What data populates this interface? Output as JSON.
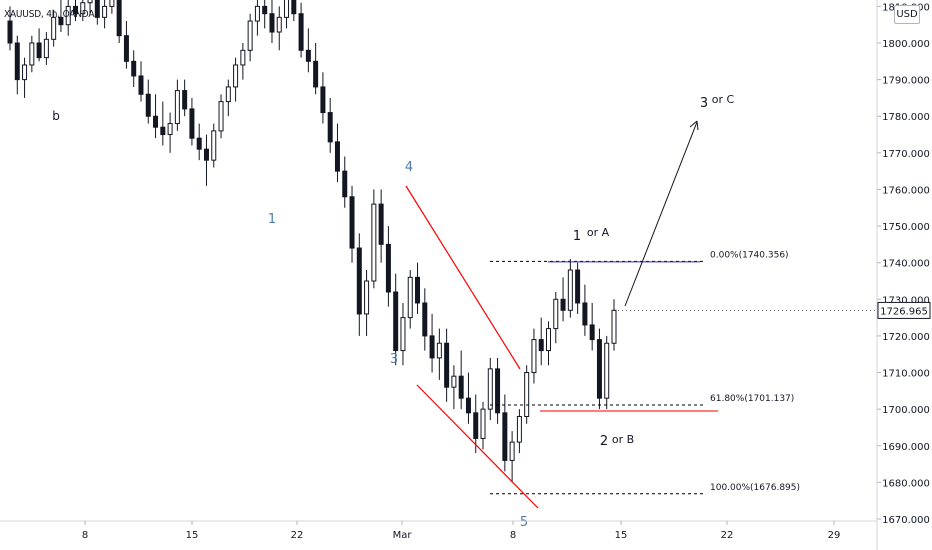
{
  "symbol_label": "XAUUSD, 4h, OANDA",
  "currency": "USD",
  "colors": {
    "up": "#131722",
    "down": "#131722",
    "channel": "#ff0000",
    "fib_line": "#000000",
    "support": "#ff5252",
    "last_price_bg": "#ffffff",
    "wave_blue": "#4f7ca8"
  },
  "chart_data": {
    "type": "candlestick",
    "title": "",
    "ylabel": "",
    "y_axis_ticks": [
      "1810.000",
      "1800.000",
      "1790.000",
      "1780.000",
      "1770.000",
      "1760.000",
      "1750.000",
      "1740.000",
      "1730.000",
      "1720.000",
      "1710.000",
      "1700.000",
      "1690.000",
      "1680.000",
      "1670.000"
    ],
    "ylim": [
      1670,
      1811
    ],
    "x_axis_ticks": [
      "8",
      "15",
      "22",
      "Mar",
      "8",
      "15",
      "22",
      "29"
    ],
    "last_price": "1726.965",
    "fibonacci": [
      {
        "label": "0.00%(1740.356)",
        "value": 1740.356
      },
      {
        "label": "61.80%(1701.137)",
        "value": 1701.137
      },
      {
        "label": "100.00%(1676.895)",
        "value": 1676.895
      }
    ],
    "wave_labels": [
      {
        "text": "b",
        "price": 1783
      },
      {
        "text": "1",
        "price": 1752
      },
      {
        "text": "4",
        "price": 1767
      },
      {
        "text": "3",
        "price": 1716
      },
      {
        "text": "5",
        "price": 1667
      },
      {
        "text": "1",
        "price": 1747
      },
      {
        "text": "or A",
        "price": 1747
      },
      {
        "text": "2",
        "price": 1692
      },
      {
        "text": "or B",
        "price": 1692
      },
      {
        "text": "3",
        "price": 1785
      },
      {
        "text": "or C",
        "price": 1785
      }
    ],
    "candles": [
      [
        1806,
        1810,
        1798,
        1800
      ],
      [
        1800,
        1802,
        1786,
        1790
      ],
      [
        1790,
        1796,
        1785,
        1794
      ],
      [
        1794,
        1802,
        1792,
        1800
      ],
      [
        1800,
        1804,
        1795,
        1796
      ],
      [
        1796,
        1803,
        1794,
        1801
      ],
      [
        1801,
        1809,
        1799,
        1807
      ],
      [
        1807,
        1812,
        1803,
        1805
      ],
      [
        1805,
        1812,
        1802,
        1810
      ],
      [
        1810,
        1814,
        1806,
        1808
      ],
      [
        1808,
        1813,
        1806,
        1811
      ],
      [
        1811,
        1815,
        1808,
        1812
      ],
      [
        1812,
        1814,
        1805,
        1807
      ],
      [
        1807,
        1812,
        1804,
        1810
      ],
      [
        1810,
        1816,
        1808,
        1813
      ],
      [
        1813,
        1815,
        1800,
        1802
      ],
      [
        1802,
        1806,
        1793,
        1795
      ],
      [
        1795,
        1798,
        1788,
        1791
      ],
      [
        1791,
        1795,
        1784,
        1786
      ],
      [
        1786,
        1790,
        1778,
        1780
      ],
      [
        1780,
        1786,
        1774,
        1777
      ],
      [
        1777,
        1784,
        1772,
        1775
      ],
      [
        1775,
        1781,
        1770,
        1778
      ],
      [
        1778,
        1790,
        1776,
        1787
      ],
      [
        1787,
        1790,
        1780,
        1782
      ],
      [
        1782,
        1785,
        1772,
        1774
      ],
      [
        1774,
        1778,
        1768,
        1771
      ],
      [
        1771,
        1775,
        1761,
        1768
      ],
      [
        1768,
        1778,
        1766,
        1776
      ],
      [
        1776,
        1786,
        1774,
        1784
      ],
      [
        1784,
        1790,
        1780,
        1788
      ],
      [
        1788,
        1796,
        1784,
        1794
      ],
      [
        1794,
        1800,
        1790,
        1798
      ],
      [
        1798,
        1808,
        1795,
        1806
      ],
      [
        1806,
        1812,
        1802,
        1810
      ],
      [
        1810,
        1816,
        1804,
        1808
      ],
      [
        1808,
        1812,
        1800,
        1803
      ],
      [
        1803,
        1810,
        1798,
        1807
      ],
      [
        1807,
        1815,
        1804,
        1812
      ],
      [
        1812,
        1816,
        1806,
        1808
      ],
      [
        1808,
        1811,
        1796,
        1798
      ],
      [
        1798,
        1804,
        1792,
        1795
      ],
      [
        1795,
        1800,
        1786,
        1788
      ],
      [
        1788,
        1792,
        1778,
        1781
      ],
      [
        1781,
        1785,
        1770,
        1773
      ],
      [
        1773,
        1778,
        1762,
        1765
      ],
      [
        1765,
        1769,
        1755,
        1758
      ],
      [
        1758,
        1761,
        1740,
        1744
      ],
      [
        1744,
        1748,
        1720,
        1726
      ],
      [
        1726,
        1738,
        1720,
        1735
      ],
      [
        1735,
        1760,
        1733,
        1756
      ],
      [
        1756,
        1760,
        1740,
        1745
      ],
      [
        1745,
        1750,
        1728,
        1732
      ],
      [
        1732,
        1737,
        1712,
        1716
      ],
      [
        1716,
        1729,
        1712,
        1725
      ],
      [
        1725,
        1738,
        1722,
        1736
      ],
      [
        1736,
        1740,
        1726,
        1729
      ],
      [
        1729,
        1733,
        1716,
        1720
      ],
      [
        1720,
        1726,
        1710,
        1714
      ],
      [
        1714,
        1722,
        1708,
        1718
      ],
      [
        1718,
        1722,
        1702,
        1706
      ],
      [
        1706,
        1712,
        1700,
        1709
      ],
      [
        1709,
        1716,
        1700,
        1703
      ],
      [
        1703,
        1710,
        1696,
        1699
      ],
      [
        1699,
        1704,
        1688,
        1692
      ],
      [
        1692,
        1702,
        1689,
        1700
      ],
      [
        1700,
        1714,
        1697,
        1711
      ],
      [
        1711,
        1714,
        1696,
        1699
      ],
      [
        1699,
        1704,
        1683,
        1686
      ],
      [
        1686,
        1694,
        1680,
        1691
      ],
      [
        1691,
        1700,
        1688,
        1698
      ],
      [
        1698,
        1712,
        1696,
        1710
      ],
      [
        1710,
        1722,
        1707,
        1719
      ],
      [
        1719,
        1725,
        1712,
        1716
      ],
      [
        1716,
        1724,
        1712,
        1722
      ],
      [
        1722,
        1732,
        1718,
        1730
      ],
      [
        1730,
        1736,
        1724,
        1727
      ],
      [
        1727,
        1741,
        1725,
        1738
      ],
      [
        1738,
        1740,
        1726,
        1729
      ],
      [
        1729,
        1734,
        1720,
        1723
      ],
      [
        1723,
        1729,
        1716,
        1719
      ],
      [
        1719,
        1722,
        1700,
        1703
      ],
      [
        1703,
        1720,
        1700,
        1718
      ],
      [
        1718,
        1730,
        1716,
        1727
      ]
    ]
  }
}
